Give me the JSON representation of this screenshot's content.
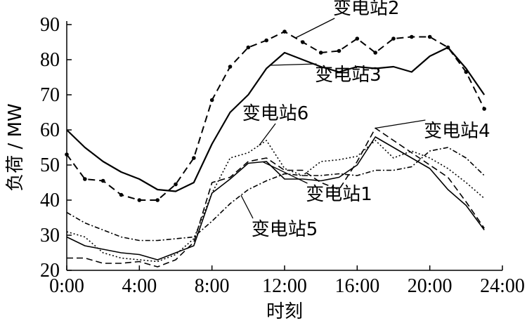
{
  "chart_data": {
    "type": "line",
    "title": "",
    "xlabel": "时刻",
    "ylabel": "负荷 / MW",
    "xlim": [
      0,
      24
    ],
    "ylim": [
      20,
      90
    ],
    "xticks": [
      0,
      4,
      8,
      12,
      16,
      20,
      24
    ],
    "xtick_labels": [
      "0:00",
      "4:00",
      "8:00",
      "12:00",
      "16:00",
      "20:00",
      "24:00"
    ],
    "yticks": [
      20,
      30,
      40,
      50,
      60,
      70,
      80,
      90
    ],
    "ytick_labels": [
      "20",
      "30",
      "40",
      "50",
      "60",
      "70",
      "80",
      "90"
    ],
    "grid": false,
    "legend": "none (series labelled inline)",
    "x": [
      0,
      1,
      2,
      3,
      4,
      5,
      6,
      7,
      8,
      9,
      10,
      11,
      12,
      13,
      14,
      15,
      16,
      17,
      18,
      19,
      20,
      21,
      22,
      23
    ],
    "series": [
      {
        "name": "变电站1",
        "style": "solid-thin",
        "values": [
          29.5,
          27,
          26,
          25,
          24.5,
          23,
          25,
          27,
          42,
          46,
          50.5,
          51,
          46,
          46,
          45.5,
          46.5,
          50,
          58,
          55,
          52,
          49,
          43,
          38.5,
          31.5
        ],
        "label_point": {
          "x": 15,
          "y": 40
        }
      },
      {
        "name": "变电站2",
        "style": "dashed-dots",
        "values": [
          53,
          46,
          45.5,
          41.5,
          40,
          40,
          44.5,
          52,
          68.5,
          78,
          83.5,
          85.5,
          88,
          85,
          82,
          82.5,
          86,
          82,
          86,
          86.5,
          86.5,
          83.5,
          76.5,
          66
        ],
        "label_point": {
          "x": 16.5,
          "y": 93
        }
      },
      {
        "name": "变电站3",
        "style": "solid",
        "values": [
          60,
          55,
          51,
          48,
          46,
          43,
          42.5,
          45,
          56,
          65,
          70,
          77.5,
          82,
          80,
          78,
          76.5,
          78,
          77.5,
          78,
          76.5,
          81,
          83.5,
          77.5,
          70
        ],
        "label_point": {
          "x": 15.5,
          "y": 74
        }
      },
      {
        "name": "变电站4",
        "style": "dashed",
        "values": [
          23.5,
          23.5,
          22,
          22,
          22.5,
          21,
          23,
          28,
          45,
          46.5,
          51,
          52,
          48.5,
          48.5,
          45,
          43,
          51,
          60.5,
          57,
          53.5,
          50,
          46.5,
          39.5,
          32
        ],
        "label_point": {
          "x": 21.5,
          "y": 58
        }
      },
      {
        "name": "变电站5",
        "style": "dash-dot",
        "values": [
          36.5,
          33.5,
          31.5,
          29.5,
          28.5,
          28.5,
          29,
          29.5,
          34,
          39,
          43,
          45.5,
          47.5,
          47,
          47,
          47.5,
          47,
          48.5,
          48.5,
          49.5,
          54,
          55,
          52,
          47
        ],
        "label_point": {
          "x": 12,
          "y": 30
        }
      },
      {
        "name": "变电站6",
        "style": "dotted",
        "values": [
          31,
          29.5,
          25,
          23.5,
          23,
          22.5,
          24.5,
          29,
          42,
          52,
          53.5,
          57,
          49,
          47,
          51,
          51.5,
          52.5,
          57,
          52,
          54,
          52,
          49,
          45,
          40.5
        ],
        "label_point": {
          "x": 11.5,
          "y": 63
        }
      }
    ]
  }
}
